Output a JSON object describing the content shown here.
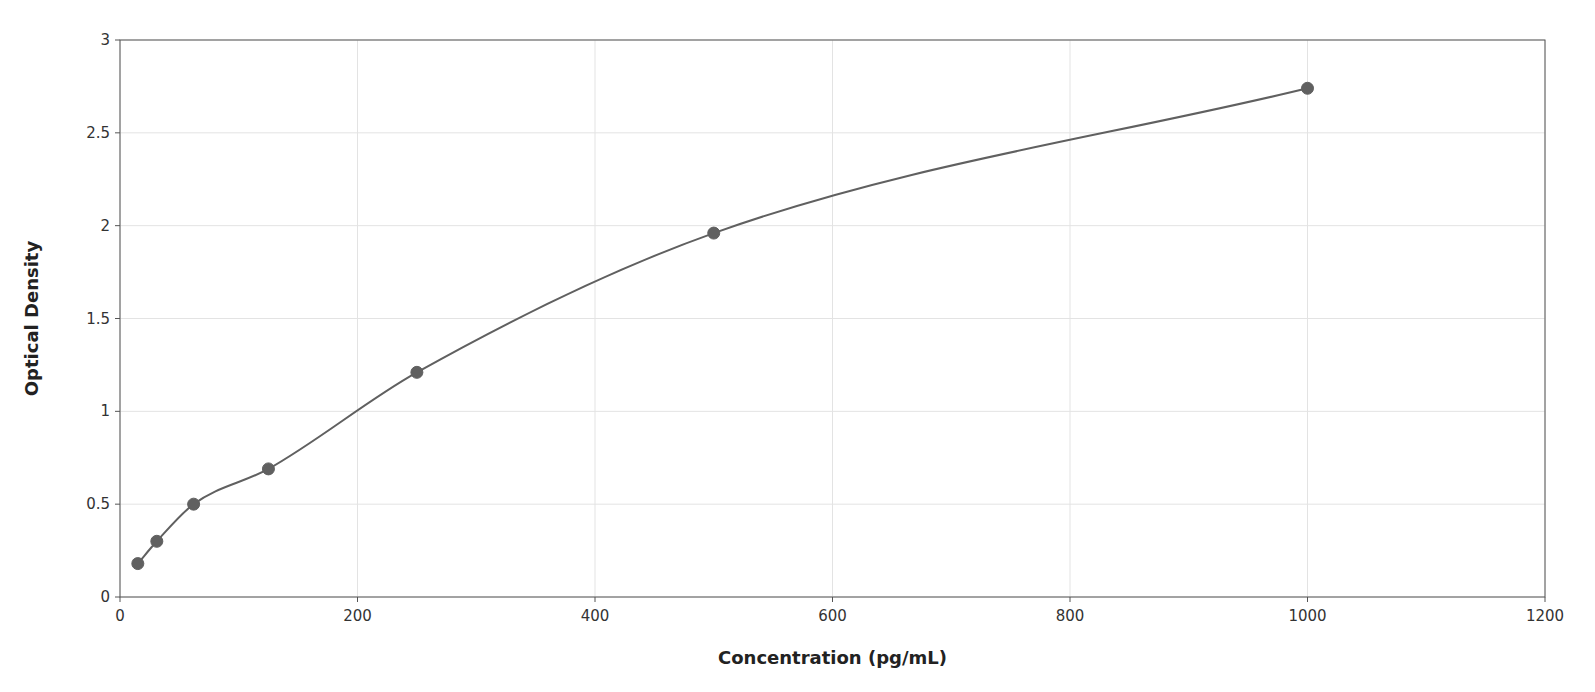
{
  "chart_data": {
    "type": "line",
    "x": [
      15,
      31,
      62,
      125,
      250,
      500,
      1000
    ],
    "series": [
      {
        "values": [
          0.18,
          0.3,
          0.5,
          0.69,
          1.21,
          1.96,
          2.74
        ],
        "color": "#606060",
        "marker": "circle",
        "line_style": "solid"
      }
    ],
    "xlabel": "Concentration (pg/mL)",
    "ylabel": "Optical Density",
    "xlim": [
      0,
      1200
    ],
    "ylim": [
      0,
      3
    ],
    "xticks": [
      0,
      200,
      400,
      600,
      800,
      1000,
      1200
    ],
    "yticks": [
      0,
      0.5,
      1,
      1.5,
      2,
      2.5,
      3
    ],
    "grid": true
  }
}
